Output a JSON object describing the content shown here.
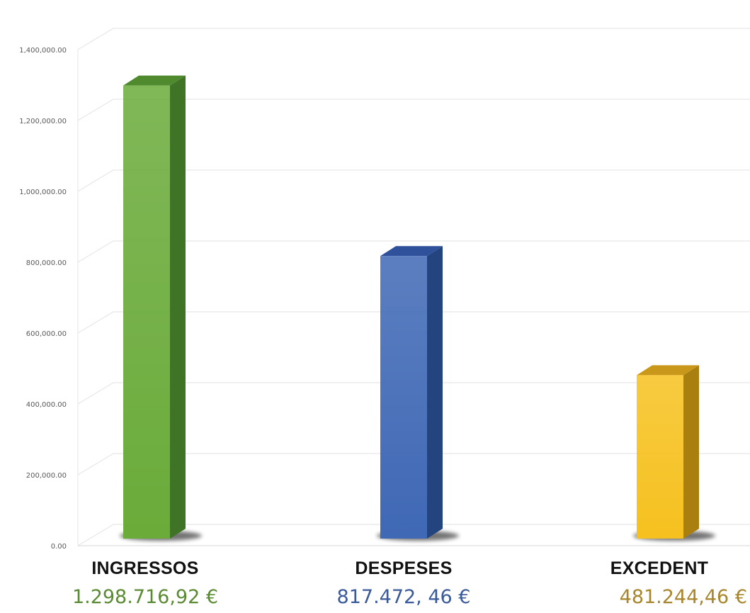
{
  "chart_data": {
    "type": "bar",
    "style": "3d-column",
    "categories": [
      "INGRESSOS",
      "DESPESES",
      "EXCEDENT"
    ],
    "values": [
      1298716.92,
      817472.46,
      481244.46
    ],
    "value_labels": [
      "1.298.716,92 €",
      "817.472, 46 €",
      "481.244,46 €"
    ],
    "y_ticks": [
      "0.00",
      "200,000.00",
      "400,000.00",
      "600,000.00",
      "800,000.00",
      "1,000,000.00",
      "1,200,000.00",
      "1,400,000.00"
    ],
    "ylim": [
      0,
      1400000
    ],
    "grid": true,
    "legend": "none",
    "title": "",
    "xlabel": "",
    "ylabel": "",
    "colors": {
      "front": [
        "#6aab3a",
        "#3f68b5",
        "#f6c11f"
      ],
      "top": [
        "#4f8a2e",
        "#2f509a",
        "#c9971a"
      ],
      "side": [
        "#3f7427",
        "#24447f",
        "#a9800f"
      ],
      "value_text": [
        "#5b8a34",
        "#3a5a99",
        "#a8862d"
      ]
    }
  }
}
